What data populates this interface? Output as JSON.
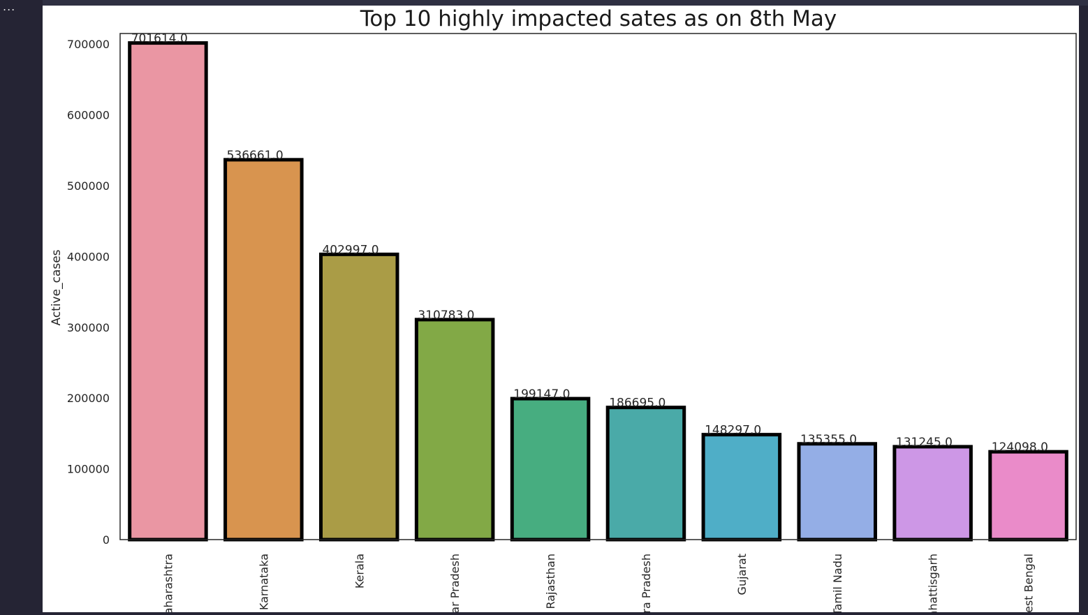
{
  "editor": {
    "ellipsis": "..."
  },
  "chart_data": {
    "type": "bar",
    "title": "Top 10 highly impacted sates as on 8th May",
    "xlabel": "",
    "ylabel": "Active_cases",
    "ylim": [
      0,
      715000
    ],
    "yticks": [
      0,
      100000,
      200000,
      300000,
      400000,
      500000,
      600000,
      700000
    ],
    "grid": false,
    "categories": [
      "Maharashtra",
      "Karnataka",
      "Kerala",
      "Uttar Pradesh",
      "Rajasthan",
      "Andhra Pradesh",
      "Gujarat",
      "Tamil Nadu",
      "Chhattisgarh",
      "West Bengal"
    ],
    "values": [
      701614,
      536661,
      402997,
      310783,
      199147,
      186695,
      148297,
      135355,
      131245,
      124098
    ],
    "value_labels": [
      "701614.0",
      "536661.0",
      "402997.0",
      "310783.0",
      "199147.0",
      "186695.0",
      "148297.0",
      "135355.0",
      "131245.0",
      "124098.0"
    ],
    "colors": [
      "#ea96a3",
      "#d8944f",
      "#aa9c46",
      "#82a946",
      "#47ad80",
      "#4aaaa8",
      "#4faec7",
      "#94aee6",
      "#cd97e6",
      "#ea8bc9"
    ],
    "bar_edge_color": "#000000"
  }
}
